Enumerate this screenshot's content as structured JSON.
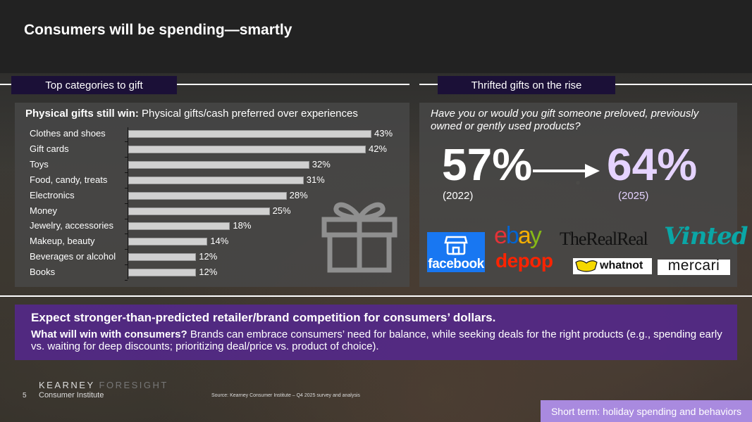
{
  "title": "Consumers will be spending—smartly",
  "left_section": {
    "header": "Top categories to gift",
    "subtitle_bold": "Physical gifts still win:",
    "subtitle_rest": " Physical gifts/cash preferred over experiences"
  },
  "chart_data": {
    "type": "bar",
    "orientation": "horizontal",
    "categories": [
      "Clothes and shoes",
      "Gift cards",
      "Toys",
      "Food, candy, treats",
      "Electronics",
      "Money",
      "Jewelry, accessories",
      "Makeup, beauty",
      "Beverages or alcohol",
      "Books"
    ],
    "values": [
      43,
      42,
      32,
      31,
      28,
      25,
      18,
      14,
      12,
      12
    ],
    "labels": [
      "43%",
      "42%",
      "32%",
      "31%",
      "28%",
      "25%",
      "18%",
      "14%",
      "12%",
      "12%"
    ],
    "xlim": [
      0,
      45
    ],
    "grid": false
  },
  "right_section": {
    "header": "Thrifted gifts on the rise",
    "question": "Have you or would you gift someone preloved, previously owned or gently used products?",
    "value_2022": "57%",
    "year_2022": "(2022)",
    "value_2025": "64%",
    "year_2025": "(2025)",
    "logos": {
      "facebook": "facebook",
      "ebay": [
        "e",
        "b",
        "a",
        "y"
      ],
      "therealreal": "TheRealReal",
      "vinted": "Vinted",
      "depop": "depop",
      "whatnot": "whatnot",
      "mercari": "mercari"
    }
  },
  "band": {
    "title": "Expect stronger-than-predicted retailer/brand competition for consumers’ dollars.",
    "text_bold": "What will win with consumers?",
    "text_rest": " Brands can embrace consumers’ need for balance, while seeking deals for the right products (e.g., spending early vs. waiting for deep discounts; prioritizing deal/price vs. product of choice)."
  },
  "footer": {
    "page_number": "5",
    "brand_main": "KEARNEY",
    "brand_sub": " FORESIGHT",
    "institute": "Consumer Institute",
    "source": "Source: Kearney Consumer Institute – Q4 2025 survey and analysis",
    "section_tab": "Short term: holiday spending and behaviors"
  },
  "colors": {
    "accent_dark": "#1b1037",
    "band_purple": "#54288c",
    "highlight_lilac": "#e5d3ff",
    "footer_tab": "#a98adf",
    "facebook_blue": "#1877f2",
    "vinted_teal": "#0aa6a6",
    "depop_red": "#ff2300"
  }
}
